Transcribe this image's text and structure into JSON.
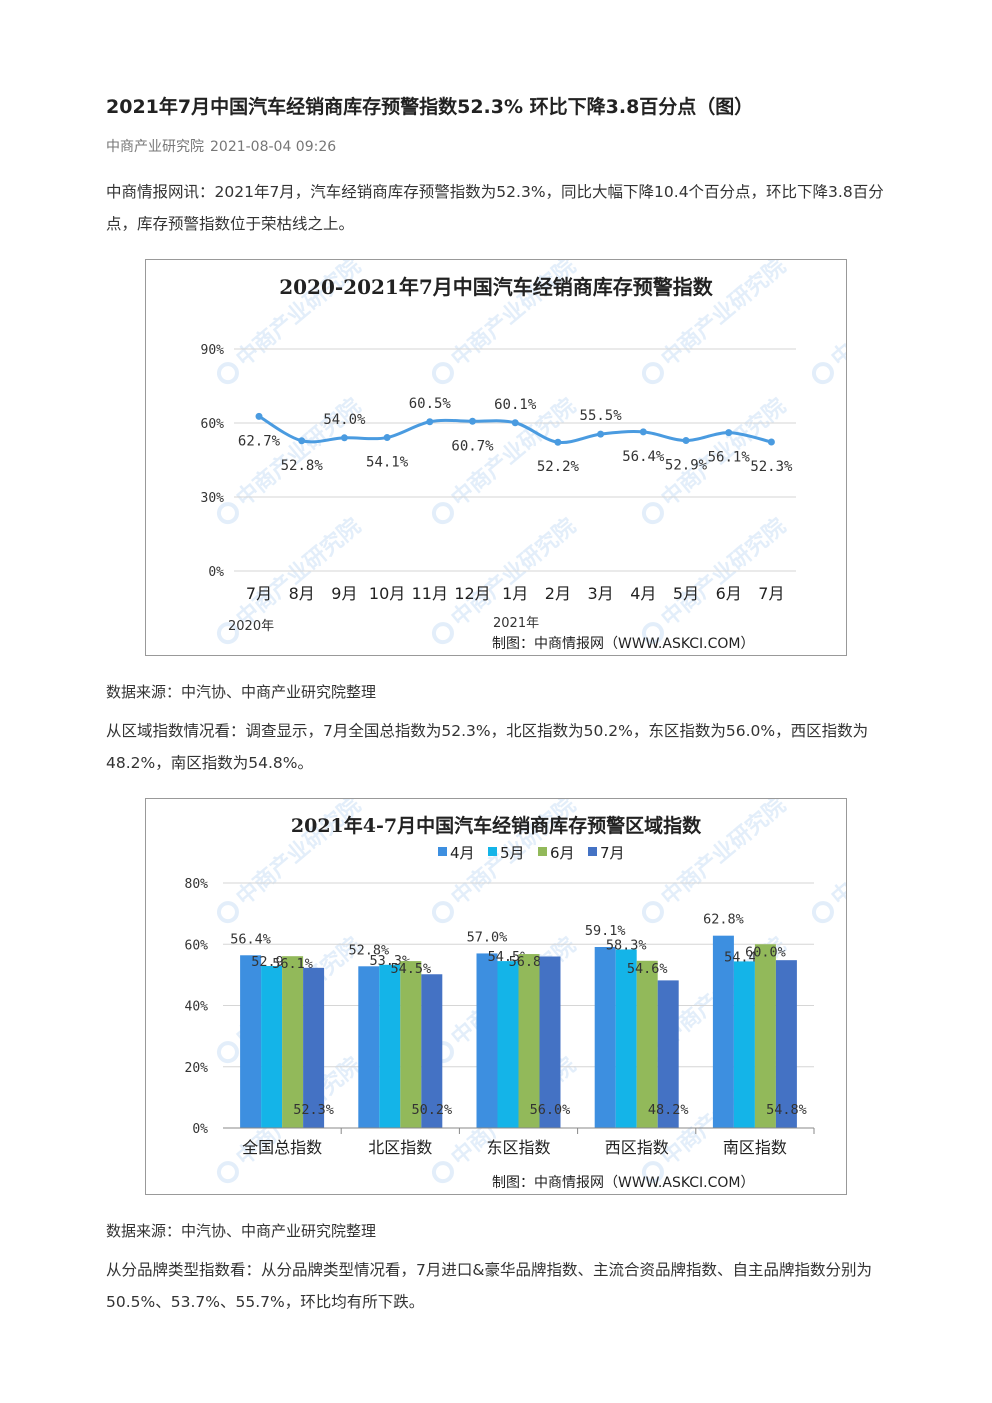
{
  "article": {
    "title": "2021年7月中国汽车经销商库存预警指数52.3% 环比下降3.8百分点（图）",
    "source": "中商产业研究院",
    "date": "2021-08-04 09:26",
    "para1": "中商情报网讯：2021年7月，汽车经销商库存预警指数为52.3%，同比大幅下降10.4个百分点，环比下降3.8百分点，库存预警指数位于荣枯线之上。",
    "source_note_1": "数据来源：中汽协、中商产业研究院整理",
    "para2": "从区域指数情况看：调查显示，7月全国总指数为52.3%，北区指数为50.2%，东区指数为56.0%，西区指数为48.2%，南区指数为54.8%。",
    "source_note_2": "数据来源：中汽协、中商产业研究院整理",
    "para3": "从分品牌类型指数看：从分品牌类型情况看，7月进口&豪华品牌指数、主流合资品牌指数、自主品牌指数分别为50.5%、53.7%、55.7%，环比均有所下跌。"
  },
  "watermark": "中商产业研究院",
  "chart_data": [
    {
      "type": "line",
      "title": "2020-2021年7月中国汽车经销商库存预警指数",
      "categories": [
        "7月",
        "8月",
        "9月",
        "10月",
        "11月",
        "12月",
        "1月",
        "2月",
        "3月",
        "4月",
        "5月",
        "6月",
        "7月"
      ],
      "values": [
        62.7,
        52.8,
        54.0,
        54.1,
        60.5,
        60.7,
        60.1,
        52.2,
        55.5,
        56.4,
        52.9,
        56.1,
        52.3
      ],
      "value_labels": [
        "62.7%",
        "52.8%",
        "54.0%",
        "54.1%",
        "60.5%",
        "60.7%",
        "60.1%",
        "52.2%",
        "55.5%",
        "56.4%",
        "52.9%",
        "56.1%",
        "52.3%"
      ],
      "label_above": [
        false,
        false,
        true,
        false,
        true,
        false,
        true,
        false,
        true,
        false,
        false,
        false,
        false
      ],
      "year_labels": [
        "2020年",
        "2021年"
      ],
      "y_ticks": [
        "0%",
        "30%",
        "60%",
        "90%"
      ],
      "ylim": [
        0,
        90
      ],
      "grid": true,
      "color": "#4a9be0",
      "credit": "制图：中商情报网（WWW.ASKCI.COM）"
    },
    {
      "type": "bar",
      "title": "2021年4-7月中国汽车经销商库存预警区域指数",
      "categories": [
        "全国总指数",
        "北区指数",
        "东区指数",
        "西区指数",
        "南区指数"
      ],
      "series": [
        {
          "name": "4月",
          "values": [
            56.4,
            52.8,
            57.0,
            59.1,
            62.8
          ],
          "color": "#3d8fe0"
        },
        {
          "name": "5月",
          "values": [
            52.9,
            53.3,
            54.5,
            58.3,
            54.4
          ],
          "color": "#14b4e8"
        },
        {
          "name": "6月",
          "values": [
            56.1,
            54.5,
            56.8,
            54.6,
            60.0
          ],
          "color": "#92b95a"
        },
        {
          "name": "7月",
          "values": [
            52.3,
            50.2,
            56.0,
            48.2,
            54.8
          ],
          "color": "#4472c4"
        }
      ],
      "y_ticks": [
        "0%",
        "20%",
        "40%",
        "60%",
        "80%"
      ],
      "ylim": [
        0,
        80
      ],
      "legend": "top",
      "grid": true,
      "credit": "制图：中商情报网（WWW.ASKCI.COM）"
    }
  ]
}
